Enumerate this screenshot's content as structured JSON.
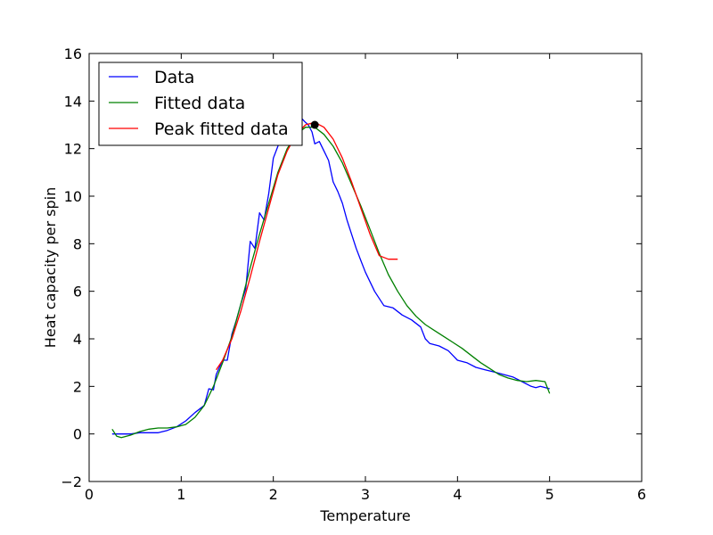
{
  "chart_data": {
    "type": "line",
    "title": "",
    "xlabel": "Temperature",
    "ylabel": "Heat capacity per spin",
    "xlim": [
      0,
      6
    ],
    "ylim": [
      -2,
      16
    ],
    "xticks": [
      0,
      1,
      2,
      3,
      4,
      5,
      6
    ],
    "yticks": [
      -2,
      0,
      2,
      4,
      6,
      8,
      10,
      12,
      14,
      16
    ],
    "xtick_labels": [
      "0",
      "1",
      "2",
      "3",
      "4",
      "5",
      "6"
    ],
    "ytick_labels": [
      "−2",
      "0",
      "2",
      "4",
      "6",
      "8",
      "10",
      "12",
      "14",
      "16"
    ],
    "grid": false,
    "legend_position": "top-left",
    "series": [
      {
        "name": "Data",
        "color": "#0000ff",
        "x": [
          0.25,
          0.35,
          0.45,
          0.55,
          0.65,
          0.75,
          0.85,
          0.95,
          1.05,
          1.15,
          1.25,
          1.3,
          1.35,
          1.38,
          1.45,
          1.5,
          1.55,
          1.6,
          1.65,
          1.7,
          1.75,
          1.8,
          1.85,
          1.9,
          1.95,
          2.0,
          2.05,
          2.1,
          2.15,
          2.2,
          2.25,
          2.3,
          2.35,
          2.38,
          2.42,
          2.45,
          2.5,
          2.55,
          2.6,
          2.65,
          2.7,
          2.75,
          2.8,
          2.85,
          2.9,
          2.95,
          3.0,
          3.1,
          3.2,
          3.3,
          3.4,
          3.5,
          3.6,
          3.65,
          3.7,
          3.8,
          3.9,
          3.95,
          4.0,
          4.1,
          4.2,
          4.3,
          4.4,
          4.5,
          4.6,
          4.7,
          4.8,
          4.85,
          4.9,
          5.0
        ],
        "y": [
          0.0,
          0.0,
          0.0,
          0.05,
          0.05,
          0.05,
          0.15,
          0.3,
          0.55,
          0.9,
          1.2,
          1.9,
          1.85,
          2.5,
          3.1,
          3.1,
          4.2,
          4.8,
          5.5,
          6.1,
          8.1,
          7.8,
          9.3,
          9.0,
          10.1,
          11.6,
          12.1,
          12.5,
          12.6,
          12.9,
          13.5,
          13.3,
          13.1,
          13.0,
          12.7,
          12.2,
          12.3,
          11.9,
          11.5,
          10.6,
          10.2,
          9.7,
          9.0,
          8.4,
          7.8,
          7.3,
          6.8,
          6.0,
          5.4,
          5.3,
          5.0,
          4.8,
          4.5,
          4.0,
          3.8,
          3.7,
          3.5,
          3.3,
          3.1,
          3.0,
          2.8,
          2.7,
          2.6,
          2.5,
          2.4,
          2.2,
          2.0,
          1.95,
          2.0,
          1.9
        ]
      },
      {
        "name": "Fitted data",
        "color": "#008000",
        "x": [
          0.25,
          0.3,
          0.35,
          0.45,
          0.55,
          0.65,
          0.75,
          0.85,
          0.95,
          1.05,
          1.15,
          1.25,
          1.35,
          1.45,
          1.55,
          1.65,
          1.75,
          1.85,
          1.95,
          2.05,
          2.15,
          2.25,
          2.35,
          2.45,
          2.55,
          2.65,
          2.75,
          2.85,
          2.95,
          3.05,
          3.15,
          3.25,
          3.35,
          3.45,
          3.55,
          3.65,
          3.75,
          3.85,
          3.95,
          4.05,
          4.15,
          4.25,
          4.35,
          4.45,
          4.55,
          4.65,
          4.75,
          4.85,
          4.95,
          5.0
        ],
        "y": [
          0.2,
          -0.1,
          -0.15,
          -0.05,
          0.1,
          0.2,
          0.25,
          0.25,
          0.3,
          0.4,
          0.7,
          1.2,
          2.0,
          3.0,
          4.1,
          5.5,
          7.0,
          8.4,
          9.7,
          11.0,
          12.0,
          12.6,
          12.9,
          12.9,
          12.6,
          12.1,
          11.4,
          10.5,
          9.6,
          8.6,
          7.6,
          6.7,
          6.0,
          5.4,
          4.95,
          4.6,
          4.35,
          4.1,
          3.85,
          3.6,
          3.3,
          3.0,
          2.75,
          2.5,
          2.35,
          2.25,
          2.2,
          2.25,
          2.2,
          1.7
        ]
      },
      {
        "name": "Peak fitted data",
        "color": "#ff0000",
        "x": [
          1.38,
          1.45,
          1.55,
          1.65,
          1.75,
          1.85,
          1.95,
          2.05,
          2.15,
          2.25,
          2.35,
          2.45,
          2.55,
          2.65,
          2.75,
          2.85,
          2.95,
          3.05,
          3.15,
          3.25,
          3.3,
          3.35
        ],
        "y": [
          2.7,
          3.1,
          4.0,
          5.2,
          6.6,
          8.1,
          9.5,
          10.9,
          11.9,
          12.6,
          13.0,
          13.1,
          12.9,
          12.4,
          11.6,
          10.6,
          9.5,
          8.4,
          7.5,
          7.35,
          7.35,
          7.35
        ]
      }
    ],
    "annotations": [
      {
        "type": "point",
        "x": 2.45,
        "y": 13.0,
        "color": "#000000"
      }
    ]
  }
}
